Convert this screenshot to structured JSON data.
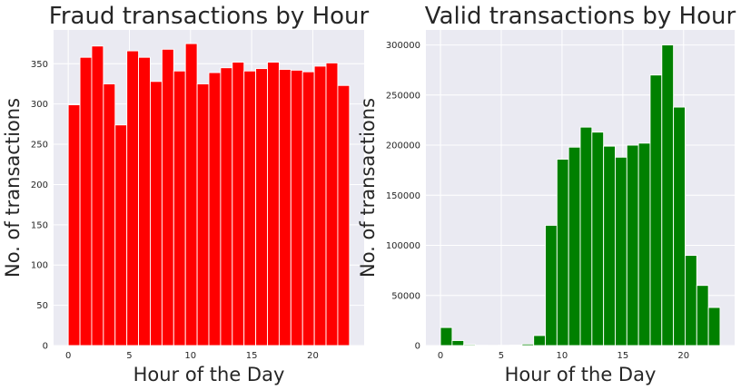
{
  "chart_data": [
    {
      "type": "bar",
      "title": "Fraud transactions by Hour",
      "xlabel": "Hour of the Day",
      "ylabel": "No. of transactions",
      "color": "#ff0000",
      "background": "#eaeaf2",
      "grid": true,
      "xlim": [
        -1.2,
        24.2
      ],
      "ylim": [
        0,
        392
      ],
      "xticks": [
        "0",
        "5",
        "10",
        "15",
        "20"
      ],
      "yticks": [
        "0",
        "50",
        "100",
        "150",
        "200",
        "250",
        "300",
        "350"
      ],
      "series": [
        {
          "x": [
            0,
            1,
            2,
            3,
            4,
            5,
            6,
            7,
            8,
            9,
            10,
            11,
            12,
            13,
            14,
            15,
            16,
            17,
            18,
            19,
            20,
            21,
            22,
            23
          ],
          "values": [
            299,
            358,
            372,
            325,
            274,
            366,
            358,
            328,
            368,
            341,
            375,
            325,
            339,
            345,
            352,
            341,
            344,
            352,
            343,
            342,
            340,
            347,
            351,
            323
          ]
        }
      ]
    },
    {
      "type": "bar",
      "title": "Valid transactions by Hour",
      "xlabel": "Hour of the Day",
      "ylabel": "No. of transactions",
      "color": "#008000",
      "background": "#eaeaf2",
      "grid": true,
      "xlim": [
        -1.2,
        24.2
      ],
      "ylim": [
        0,
        315000
      ],
      "xticks": [
        "0",
        "5",
        "10",
        "15",
        "20"
      ],
      "yticks": [
        "0",
        "50000",
        "100000",
        "150000",
        "200000",
        "250000",
        "300000"
      ],
      "series": [
        {
          "x": [
            0,
            1,
            2,
            3,
            4,
            5,
            6,
            7,
            8,
            9,
            10,
            11,
            12,
            13,
            14,
            15,
            16,
            17,
            18,
            19,
            20,
            21,
            22,
            23
          ],
          "values": [
            18000,
            5000,
            1000,
            300,
            200,
            300,
            500,
            1500,
            10000,
            120000,
            186000,
            198000,
            218000,
            213000,
            199000,
            188000,
            200000,
            202000,
            270000,
            300000,
            238000,
            90000,
            60000,
            38000
          ]
        }
      ]
    }
  ]
}
